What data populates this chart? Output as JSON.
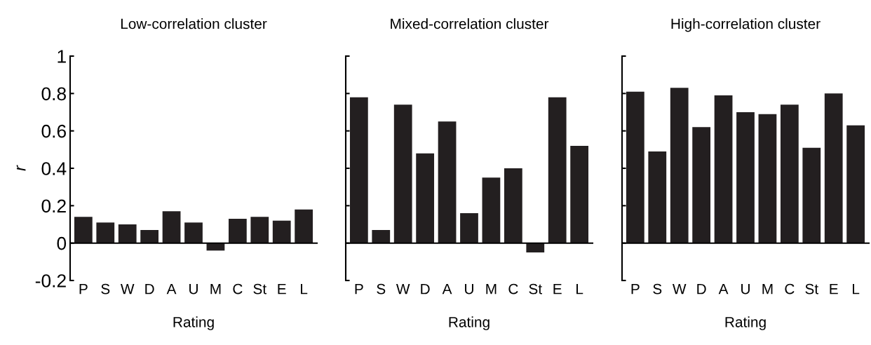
{
  "chart_data": [
    {
      "type": "bar",
      "title": "Low-correlation cluster",
      "xlabel": "Rating",
      "ylabel": "r",
      "categories": [
        "P",
        "S",
        "W",
        "D",
        "A",
        "U",
        "M",
        "C",
        "St",
        "E",
        "L"
      ],
      "values": [
        0.14,
        0.11,
        0.1,
        0.07,
        0.17,
        0.11,
        -0.04,
        0.13,
        0.14,
        0.12,
        0.18
      ],
      "color": "#231f20",
      "ylim": [
        -0.2,
        1
      ],
      "yticks": [
        -0.2,
        0,
        0.2,
        0.4,
        0.6,
        0.8,
        1
      ],
      "legend": false
    },
    {
      "type": "bar",
      "title": "Mixed-correlation cluster",
      "xlabel": "Rating",
      "categories": [
        "P",
        "S",
        "W",
        "D",
        "A",
        "U",
        "M",
        "C",
        "St",
        "E",
        "L"
      ],
      "values": [
        0.78,
        0.07,
        0.74,
        0.48,
        0.65,
        0.16,
        0.35,
        0.4,
        -0.05,
        0.78,
        0.52
      ],
      "color": "#231f20",
      "ylim": [
        -0.2,
        1
      ],
      "yticks": [
        -0.2,
        0,
        0.2,
        0.4,
        0.6,
        0.8,
        1
      ],
      "tick_labels": "x",
      "legend": false
    },
    {
      "type": "bar",
      "title": "High-correlation cluster",
      "xlabel": "Rating",
      "categories": [
        "P",
        "S",
        "W",
        "D",
        "A",
        "U",
        "M",
        "C",
        "St",
        "E",
        "L"
      ],
      "values": [
        0.81,
        0.49,
        0.83,
        0.62,
        0.79,
        0.7,
        0.69,
        0.74,
        0.51,
        0.8,
        0.63
      ],
      "color": "#231f20",
      "ylim": [
        -0.2,
        1
      ],
      "yticks": [
        -0.2,
        0,
        0.2,
        0.4,
        0.6,
        0.8,
        1
      ],
      "tick_labels": "x",
      "legend": false
    }
  ]
}
